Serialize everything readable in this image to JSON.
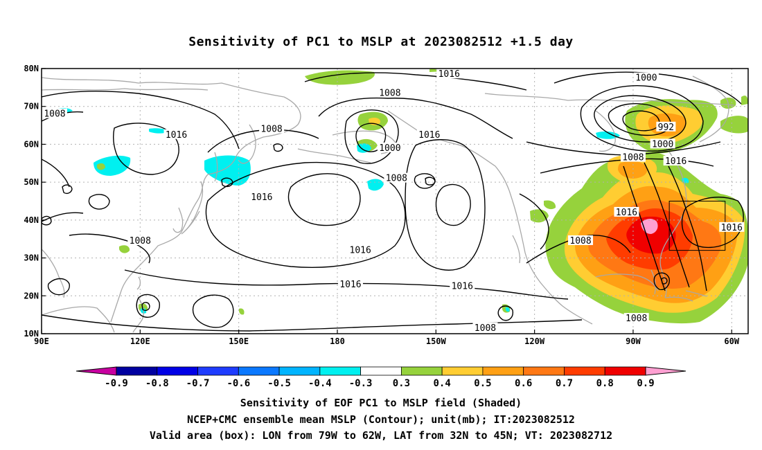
{
  "title": "Sensitivity of PC1 to MSLP at 2023082512 +1.5 day",
  "captions": {
    "line1": "Sensitivity of EOF PC1 to MSLP field (Shaded)",
    "line2": "NCEP+CMC ensemble mean MSLP (Contour); unit(mb); IT:2023082512",
    "line3": "Valid area (box): LON from 79W to 62W, LAT from 32N to 45N; VT: 2023082712"
  },
  "map": {
    "lon_range": [
      90,
      305
    ],
    "lat_range": [
      10,
      80
    ],
    "lon_ticks": [
      {
        "lon": 90,
        "label": "90E"
      },
      {
        "lon": 120,
        "label": "120E"
      },
      {
        "lon": 150,
        "label": "150E"
      },
      {
        "lon": 180,
        "label": "180"
      },
      {
        "lon": 210,
        "label": "150W"
      },
      {
        "lon": 240,
        "label": "120W"
      },
      {
        "lon": 270,
        "label": "90W"
      },
      {
        "lon": 300,
        "label": "60W"
      }
    ],
    "lat_ticks": [
      {
        "lat": 80,
        "label": "80N"
      },
      {
        "lat": 70,
        "label": "70N"
      },
      {
        "lat": 60,
        "label": "60N"
      },
      {
        "lat": 50,
        "label": "50N"
      },
      {
        "lat": 40,
        "label": "40N"
      },
      {
        "lat": 30,
        "label": "30N"
      },
      {
        "lat": 20,
        "label": "20N"
      },
      {
        "lat": 10,
        "label": "10N"
      }
    ],
    "valid_box": {
      "lon_min": 281,
      "lon_max": 298,
      "lat_min": 32,
      "lat_max": 45
    },
    "contour_labels": [
      {
        "lon": 214,
        "lat": 78.5,
        "text": "1016"
      },
      {
        "lon": 196,
        "lat": 73.5,
        "text": "1008"
      },
      {
        "lon": 274,
        "lat": 77.5,
        "text": "1000"
      },
      {
        "lon": 94,
        "lat": 68,
        "text": "1008"
      },
      {
        "lon": 131,
        "lat": 62.5,
        "text": "1016"
      },
      {
        "lon": 160,
        "lat": 64,
        "text": "1008"
      },
      {
        "lon": 208,
        "lat": 62.5,
        "text": "1016"
      },
      {
        "lon": 196,
        "lat": 59,
        "text": "1000"
      },
      {
        "lon": 280,
        "lat": 64.5,
        "text": "992"
      },
      {
        "lon": 279,
        "lat": 60,
        "text": "1000"
      },
      {
        "lon": 270,
        "lat": 56.5,
        "text": "1008"
      },
      {
        "lon": 283,
        "lat": 55.5,
        "text": "1016"
      },
      {
        "lon": 198,
        "lat": 51,
        "text": "1008"
      },
      {
        "lon": 157,
        "lat": 46,
        "text": "1016"
      },
      {
        "lon": 268,
        "lat": 42,
        "text": "1016"
      },
      {
        "lon": 120,
        "lat": 34.5,
        "text": "1008"
      },
      {
        "lon": 254,
        "lat": 34.5,
        "text": "1008"
      },
      {
        "lon": 300,
        "lat": 38,
        "text": "1016"
      },
      {
        "lon": 187,
        "lat": 32,
        "text": "1016"
      },
      {
        "lon": 184,
        "lat": 23,
        "text": "1016"
      },
      {
        "lon": 218,
        "lat": 22.5,
        "text": "1016"
      },
      {
        "lon": 225,
        "lat": 11.5,
        "text": "1008"
      },
      {
        "lon": 271,
        "lat": 14,
        "text": "1008"
      }
    ]
  },
  "colorbar": {
    "labels": [
      "-0.9",
      "-0.8",
      "-0.7",
      "-0.6",
      "-0.5",
      "-0.4",
      "-0.3",
      "0.3",
      "0.4",
      "0.5",
      "0.6",
      "0.7",
      "0.8",
      "0.9"
    ],
    "colors": [
      "#0000a0",
      "#0000e6",
      "#1e3cff",
      "#0a78ff",
      "#00b4ff",
      "#00f0f0",
      "#ffffff",
      "#96d23c",
      "#ffcd32",
      "#ffa014",
      "#ff7814",
      "#ff3c00",
      "#f00000"
    ],
    "low_arrow_color": "#c800a0",
    "high_arrow_color": "#ffa0d2"
  }
}
